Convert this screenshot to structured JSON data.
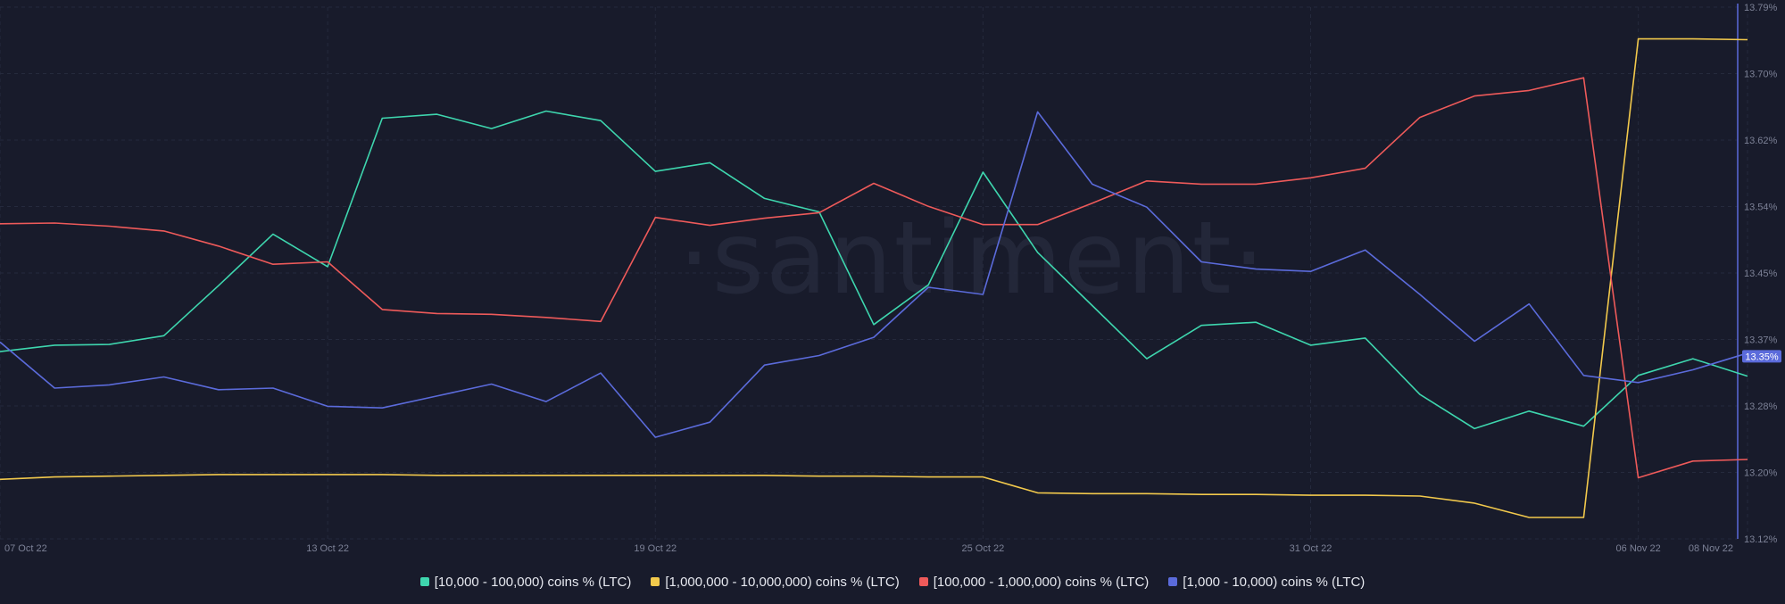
{
  "watermark": "·santiment·",
  "colors": {
    "background": "#181b2b",
    "grid": "#252a3d",
    "tick_text": "#7c8196",
    "axis_line": "#5b6bdb",
    "badge_bg": "#5b6bdb",
    "badge_text": "#ffffff"
  },
  "chart_data": {
    "type": "line",
    "x": [
      "07 Oct 22",
      "08 Oct 22",
      "09 Oct 22",
      "10 Oct 22",
      "11 Oct 22",
      "12 Oct 22",
      "13 Oct 22",
      "14 Oct 22",
      "15 Oct 22",
      "16 Oct 22",
      "17 Oct 22",
      "18 Oct 22",
      "19 Oct 22",
      "20 Oct 22",
      "21 Oct 22",
      "22 Oct 22",
      "23 Oct 22",
      "24 Oct 22",
      "25 Oct 22",
      "26 Oct 22",
      "27 Oct 22",
      "28 Oct 22",
      "29 Oct 22",
      "30 Oct 22",
      "31 Oct 22",
      "01 Nov 22",
      "02 Nov 22",
      "03 Nov 22",
      "04 Nov 22",
      "05 Nov 22",
      "06 Nov 22",
      "07 Nov 22",
      "08 Nov 22"
    ],
    "x_ticks": [
      "07 Oct 22",
      "13 Oct 22",
      "19 Oct 22",
      "25 Oct 22",
      "31 Oct 22",
      "06 Nov 22",
      "08 Nov 22"
    ],
    "y_ticks": [
      "13.12%",
      "13.20%",
      "13.28%",
      "13.37%",
      "13.45%",
      "13.54%",
      "13.62%",
      "13.70%",
      "13.79%"
    ],
    "ylim": [
      13.12,
      13.79
    ],
    "y_unit": "%",
    "current_value_badge": "13.35%",
    "grid": true,
    "legend_position": "bottom",
    "series": [
      {
        "name": "[10,000 - 100,000) coins % (LTC)",
        "color": "#3ed6ae",
        "values": [
          13.356,
          13.364,
          13.365,
          13.376,
          13.439,
          13.504,
          13.463,
          13.65,
          13.655,
          13.637,
          13.659,
          13.647,
          13.583,
          13.594,
          13.549,
          13.532,
          13.39,
          13.44,
          13.582,
          13.481,
          13.414,
          13.347,
          13.389,
          13.393,
          13.364,
          13.373,
          13.302,
          13.259,
          13.281,
          13.262,
          13.326,
          13.347,
          13.325
        ]
      },
      {
        "name": "[1,000,000 - 10,000,000) coins % (LTC)",
        "color": "#f2c94c",
        "values": [
          13.195,
          13.198,
          13.199,
          13.2,
          13.201,
          13.201,
          13.201,
          13.201,
          13.2,
          13.2,
          13.2,
          13.2,
          13.2,
          13.2,
          13.2,
          13.199,
          13.199,
          13.198,
          13.198,
          13.178,
          13.177,
          13.177,
          13.176,
          13.176,
          13.175,
          13.175,
          13.174,
          13.165,
          13.147,
          13.147,
          13.75,
          13.75,
          13.749
        ]
      },
      {
        "name": "[100,000  - 1,000,000) coins % (LTC)",
        "color": "#ee5a5a",
        "values": [
          13.517,
          13.518,
          13.514,
          13.508,
          13.489,
          13.466,
          13.469,
          13.409,
          13.404,
          13.403,
          13.399,
          13.394,
          13.525,
          13.515,
          13.524,
          13.531,
          13.568,
          13.539,
          13.516,
          13.516,
          13.543,
          13.571,
          13.567,
          13.567,
          13.575,
          13.587,
          13.651,
          13.678,
          13.685,
          13.701,
          13.197,
          13.218,
          13.22
        ]
      },
      {
        "name": "[1,000 - 10,000) coins % (LTC)",
        "color": "#5b6bdb",
        "values": [
          13.368,
          13.31,
          13.314,
          13.324,
          13.308,
          13.31,
          13.287,
          13.285,
          13.3,
          13.315,
          13.293,
          13.329,
          13.248,
          13.267,
          13.339,
          13.351,
          13.374,
          13.437,
          13.428,
          13.658,
          13.567,
          13.538,
          13.469,
          13.46,
          13.457,
          13.484,
          13.428,
          13.369,
          13.416,
          13.326,
          13.317,
          13.333,
          13.354
        ]
      }
    ]
  }
}
